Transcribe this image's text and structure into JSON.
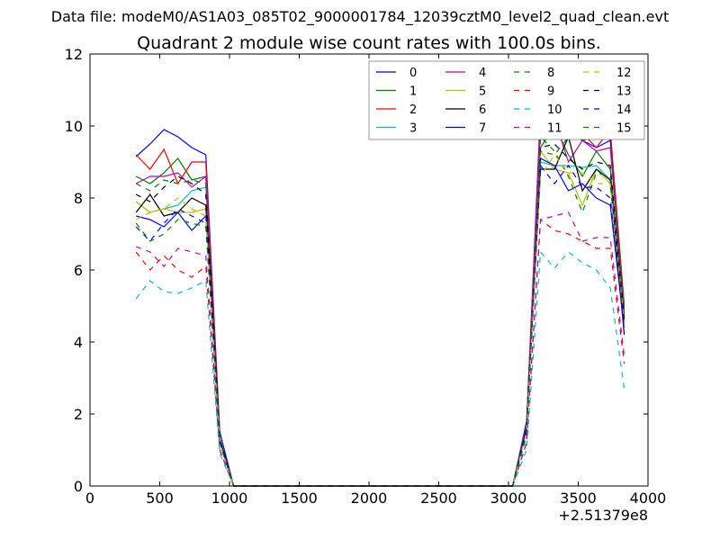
{
  "suptitle": "Data file: modeM0/AS1A03_085T02_9000001784_12039cztM0_level2_quad_clean.evt",
  "chart_data": {
    "type": "line",
    "title": "Quadrant 2 module wise count rates with 100.0s bins.",
    "xlabel": "",
    "ylabel": "",
    "x_offset_label": "+2.51379e8",
    "xlim": [
      0,
      4000
    ],
    "ylim": [
      0,
      12
    ],
    "xticks": [
      0,
      500,
      1000,
      1500,
      2000,
      2500,
      3000,
      3500,
      4000
    ],
    "yticks": [
      0,
      2,
      4,
      6,
      8,
      10,
      12
    ],
    "x": [
      330,
      430,
      530,
      630,
      730,
      830,
      930,
      1030,
      1130,
      1230,
      1330,
      1430,
      1530,
      1630,
      1730,
      1830,
      1930,
      2030,
      2130,
      2230,
      2330,
      2430,
      2530,
      2630,
      2730,
      2830,
      2930,
      3030,
      3130,
      3230,
      3330,
      3430,
      3530,
      3630,
      3730,
      3830
    ],
    "grid": false,
    "legend_position": "top-right",
    "legend_columns": 4,
    "series": [
      {
        "name": "0",
        "color": "#0000ff",
        "style": "solid",
        "values": [
          9.15,
          9.5,
          9.9,
          9.7,
          9.4,
          9.2,
          1.5,
          0,
          0,
          0,
          0,
          0,
          0,
          0,
          0,
          0,
          0,
          0,
          0,
          0,
          0,
          0,
          0,
          0,
          0,
          0,
          0,
          0,
          1.8,
          10.0,
          9.8,
          9.9,
          9.6,
          9.4,
          9.6,
          4.8
        ]
      },
      {
        "name": "1",
        "color": "#008000",
        "style": "solid",
        "values": [
          8.6,
          8.4,
          8.7,
          9.1,
          8.5,
          8.6,
          1.3,
          0,
          0,
          0,
          0,
          0,
          0,
          0,
          0,
          0,
          0,
          0,
          0,
          0,
          0,
          0,
          0,
          0,
          0,
          0,
          0,
          0,
          1.7,
          9.4,
          10.0,
          9.2,
          8.6,
          9.3,
          8.8,
          4.6
        ]
      },
      {
        "name": "2",
        "color": "#ff0000",
        "style": "solid",
        "values": [
          9.2,
          8.8,
          9.35,
          8.4,
          9.0,
          9.0,
          1.3,
          0,
          0,
          0,
          0,
          0,
          0,
          0,
          0,
          0,
          0,
          0,
          0,
          0,
          0,
          0,
          0,
          0,
          0,
          0,
          0,
          0,
          1.7,
          10.2,
          9.9,
          10.0,
          9.8,
          9.4,
          9.9,
          5.0
        ]
      },
      {
        "name": "3",
        "color": "#00bfbf",
        "style": "solid",
        "values": [
          7.9,
          7.6,
          7.7,
          7.8,
          8.2,
          8.3,
          1.2,
          0,
          0,
          0,
          0,
          0,
          0,
          0,
          0,
          0,
          0,
          0,
          0,
          0,
          0,
          0,
          0,
          0,
          0,
          0,
          0,
          0,
          1.7,
          9.0,
          8.9,
          8.9,
          8.85,
          8.9,
          8.5,
          4.5
        ]
      },
      {
        "name": "4",
        "color": "#bf00bf",
        "style": "solid",
        "values": [
          8.4,
          8.6,
          8.6,
          8.7,
          8.3,
          8.6,
          1.3,
          0,
          0,
          0,
          0,
          0,
          0,
          0,
          0,
          0,
          0,
          0,
          0,
          0,
          0,
          0,
          0,
          0,
          0,
          0,
          0,
          0,
          1.7,
          10.5,
          10.2,
          9.0,
          9.6,
          9.3,
          9.4,
          4.7
        ]
      },
      {
        "name": "5",
        "color": "#bfbf00",
        "style": "solid",
        "values": [
          7.9,
          7.6,
          7.7,
          7.6,
          7.6,
          7.7,
          1.2,
          0,
          0,
          0,
          0,
          0,
          0,
          0,
          0,
          0,
          0,
          0,
          0,
          0,
          0,
          0,
          0,
          0,
          0,
          0,
          0,
          0,
          1.6,
          9.3,
          8.8,
          8.7,
          7.8,
          8.8,
          8.4,
          4.5
        ]
      },
      {
        "name": "6",
        "color": "#000000",
        "style": "solid",
        "values": [
          7.6,
          8.1,
          7.5,
          7.6,
          8.0,
          7.8,
          1.3,
          0,
          0,
          0,
          0,
          0,
          0,
          0,
          0,
          0,
          0,
          0,
          0,
          0,
          0,
          0,
          0,
          0,
          0,
          0,
          0,
          0,
          1.6,
          8.8,
          8.8,
          9.7,
          8.2,
          8.8,
          8.5,
          4.2
        ]
      },
      {
        "name": "7",
        "color": "#0000ff",
        "style": "solid",
        "values": [
          7.5,
          7.4,
          7.2,
          7.6,
          7.1,
          7.5,
          1.2,
          0,
          0,
          0,
          0,
          0,
          0,
          0,
          0,
          0,
          0,
          0,
          0,
          0,
          0,
          0,
          0,
          0,
          0,
          0,
          0,
          0,
          1.6,
          9.1,
          8.9,
          8.2,
          8.4,
          8.0,
          7.8,
          4.4
        ]
      },
      {
        "name": "8",
        "color": "#008000",
        "style": "dashed",
        "values": [
          8.4,
          8.2,
          8.5,
          8.4,
          8.5,
          8.4,
          1.2,
          0,
          0,
          0,
          0,
          0,
          0,
          0,
          0,
          0,
          0,
          0,
          0,
          0,
          0,
          0,
          0,
          0,
          0,
          0,
          0,
          0,
          1.4,
          9.7,
          9.3,
          8.6,
          7.6,
          8.7,
          8.6,
          4.9
        ]
      },
      {
        "name": "9",
        "color": "#ff0000",
        "style": "dashed",
        "values": [
          6.5,
          6.0,
          6.4,
          6.0,
          5.8,
          6.1,
          1.0,
          0,
          0,
          0,
          0,
          0,
          0,
          0,
          0,
          0,
          0,
          0,
          0,
          0,
          0,
          0,
          0,
          0,
          0,
          0,
          0,
          0,
          1.2,
          7.4,
          7.1,
          7.0,
          6.8,
          6.6,
          6.6,
          3.4
        ]
      },
      {
        "name": "10",
        "color": "#00bfbf",
        "style": "dashed",
        "values": [
          5.2,
          5.7,
          5.4,
          5.35,
          5.5,
          5.7,
          0.9,
          0,
          0,
          0,
          0,
          0,
          0,
          0,
          0,
          0,
          0,
          0,
          0,
          0,
          0,
          0,
          0,
          0,
          0,
          0,
          0,
          0,
          1.0,
          6.5,
          6.05,
          6.5,
          6.2,
          6.0,
          5.5,
          2.7
        ]
      },
      {
        "name": "11",
        "color": "#bf00bf",
        "style": "dashed",
        "values": [
          6.65,
          6.5,
          6.1,
          6.6,
          6.5,
          6.4,
          1.0,
          0,
          0,
          0,
          0,
          0,
          0,
          0,
          0,
          0,
          0,
          0,
          0,
          0,
          0,
          0,
          0,
          0,
          0,
          0,
          0,
          0,
          1.2,
          7.4,
          7.5,
          7.6,
          6.8,
          6.9,
          6.9,
          3.6
        ]
      },
      {
        "name": "12",
        "color": "#bfbf00",
        "style": "dashed",
        "values": [
          7.4,
          7.6,
          7.7,
          8.0,
          7.7,
          7.5,
          1.2,
          0,
          0,
          0,
          0,
          0,
          0,
          0,
          0,
          0,
          0,
          0,
          0,
          0,
          0,
          0,
          0,
          0,
          0,
          0,
          0,
          0,
          1.5,
          8.6,
          9.2,
          8.7,
          8.7,
          8.4,
          8.4,
          4.4
        ]
      },
      {
        "name": "13",
        "color": "#000000",
        "style": "dashed",
        "values": [
          8.1,
          7.9,
          8.3,
          8.6,
          8.4,
          8.1,
          1.3,
          0,
          0,
          0,
          0,
          0,
          0,
          0,
          0,
          0,
          0,
          0,
          0,
          0,
          0,
          0,
          0,
          0,
          0,
          0,
          0,
          0,
          1.6,
          9.4,
          9.5,
          9.1,
          8.8,
          9.0,
          8.9,
          4.6
        ]
      },
      {
        "name": "14",
        "color": "#0000ff",
        "style": "dashed",
        "values": [
          7.2,
          6.8,
          7.3,
          7.7,
          7.5,
          7.3,
          1.2,
          0,
          0,
          0,
          0,
          0,
          0,
          0,
          0,
          0,
          0,
          0,
          0,
          0,
          0,
          0,
          0,
          0,
          0,
          0,
          0,
          0,
          1.5,
          8.9,
          8.4,
          8.9,
          8.3,
          8.3,
          8.0,
          4.3
        ]
      },
      {
        "name": "15",
        "color": "#008000",
        "style": "dashed",
        "values": [
          7.3,
          6.8,
          7.0,
          7.4,
          7.3,
          7.2,
          1.2,
          0,
          0,
          0,
          0,
          0,
          0,
          0,
          0,
          0,
          0,
          0,
          0,
          0,
          0,
          0,
          0,
          0,
          0,
          0,
          0,
          0,
          1.5,
          9.3,
          9.2,
          9.7,
          9.6,
          9.7,
          9.8,
          5.0
        ]
      }
    ]
  }
}
